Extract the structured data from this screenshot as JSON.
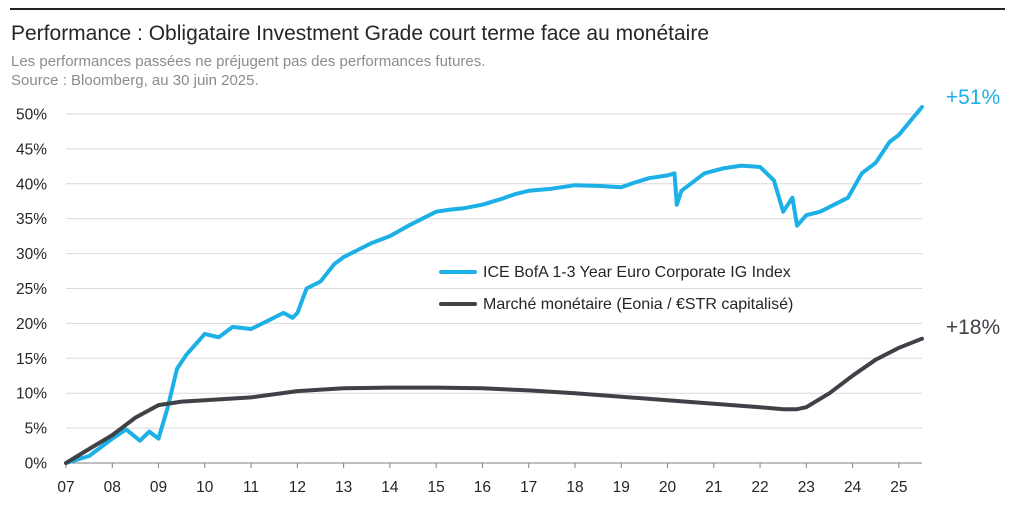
{
  "header": {
    "title": "Performance : Obligataire Investment Grade court terme face au monétaire",
    "subtitle_line1": "Les performances passées ne préjugent pas des performances futures.",
    "subtitle_line2": "Source : Bloomberg, au 30 juin 2025."
  },
  "colors": {
    "series1": "#1cb0e6",
    "series2": "#3e4247",
    "grid": "#d9d9d9",
    "text": "#262626",
    "subtitle": "#8c8c8c"
  },
  "chart_data": {
    "type": "line",
    "title": "Performance : Obligataire Investment Grade court terme face au monétaire",
    "xlabel": "",
    "ylabel": "",
    "x_ticks": [
      "07",
      "08",
      "09",
      "10",
      "11",
      "12",
      "13",
      "14",
      "15",
      "16",
      "17",
      "18",
      "19",
      "20",
      "21",
      "22",
      "23",
      "24",
      "25"
    ],
    "y_ticks": [
      "0%",
      "5%",
      "10%",
      "15%",
      "20%",
      "25%",
      "30%",
      "35%",
      "40%",
      "45%",
      "50%"
    ],
    "xlim": [
      2007.0,
      2025.5
    ],
    "ylim": [
      0,
      52
    ],
    "grid": "horizontal",
    "legend_position": "center-right",
    "end_labels": [
      "+51%",
      "+18%"
    ],
    "series": [
      {
        "name": "ICE BofA 1-3 Year Euro Corporate IG Index",
        "x": [
          2007.0,
          2007.5,
          2008.0,
          2008.3,
          2008.6,
          2008.8,
          2009.0,
          2009.2,
          2009.4,
          2009.6,
          2009.8,
          2010.0,
          2010.3,
          2010.6,
          2011.0,
          2011.4,
          2011.7,
          2011.9,
          2012.0,
          2012.2,
          2012.5,
          2012.8,
          2013.0,
          2013.3,
          2013.6,
          2014.0,
          2014.4,
          2014.7,
          2015.0,
          2015.3,
          2015.6,
          2016.0,
          2016.4,
          2016.7,
          2017.0,
          2017.5,
          2018.0,
          2018.5,
          2019.0,
          2019.3,
          2019.6,
          2020.0,
          2020.15,
          2020.2,
          2020.3,
          2020.5,
          2020.8,
          2021.2,
          2021.6,
          2022.0,
          2022.3,
          2022.5,
          2022.7,
          2022.8,
          2023.0,
          2023.3,
          2023.6,
          2023.9,
          2024.2,
          2024.5,
          2024.8,
          2025.0,
          2025.25,
          2025.5
        ],
        "values": [
          0.0,
          1.0,
          3.5,
          4.8,
          3.2,
          4.5,
          3.5,
          8.0,
          13.5,
          15.5,
          17.0,
          18.5,
          18.0,
          19.5,
          19.2,
          20.5,
          21.5,
          20.8,
          21.5,
          25.0,
          26.0,
          28.5,
          29.5,
          30.5,
          31.5,
          32.5,
          34.0,
          35.0,
          36.0,
          36.3,
          36.5,
          37.0,
          37.8,
          38.5,
          39.0,
          39.3,
          39.8,
          39.7,
          39.5,
          40.2,
          40.8,
          41.2,
          41.5,
          37.0,
          39.0,
          40.0,
          41.5,
          42.2,
          42.6,
          42.4,
          40.5,
          36.0,
          38.0,
          34.0,
          35.5,
          36.0,
          37.0,
          38.0,
          41.5,
          43.0,
          46.0,
          47.0,
          49.0,
          51.0
        ]
      },
      {
        "name": "Marché monétaire (Eonia / €STR capitalisé)",
        "x": [
          2007.0,
          2007.5,
          2008.0,
          2008.5,
          2009.0,
          2009.5,
          2010.0,
          2011.0,
          2012.0,
          2013.0,
          2014.0,
          2015.0,
          2016.0,
          2017.0,
          2018.0,
          2019.0,
          2020.0,
          2021.0,
          2022.0,
          2022.5,
          2022.8,
          2023.0,
          2023.5,
          2024.0,
          2024.5,
          2025.0,
          2025.5
        ],
        "values": [
          0.0,
          2.0,
          4.0,
          6.5,
          8.3,
          8.8,
          9.0,
          9.4,
          10.3,
          10.7,
          10.8,
          10.8,
          10.7,
          10.4,
          10.0,
          9.5,
          9.0,
          8.5,
          8.0,
          7.7,
          7.7,
          8.0,
          10.0,
          12.5,
          14.8,
          16.5,
          17.8
        ]
      }
    ]
  }
}
